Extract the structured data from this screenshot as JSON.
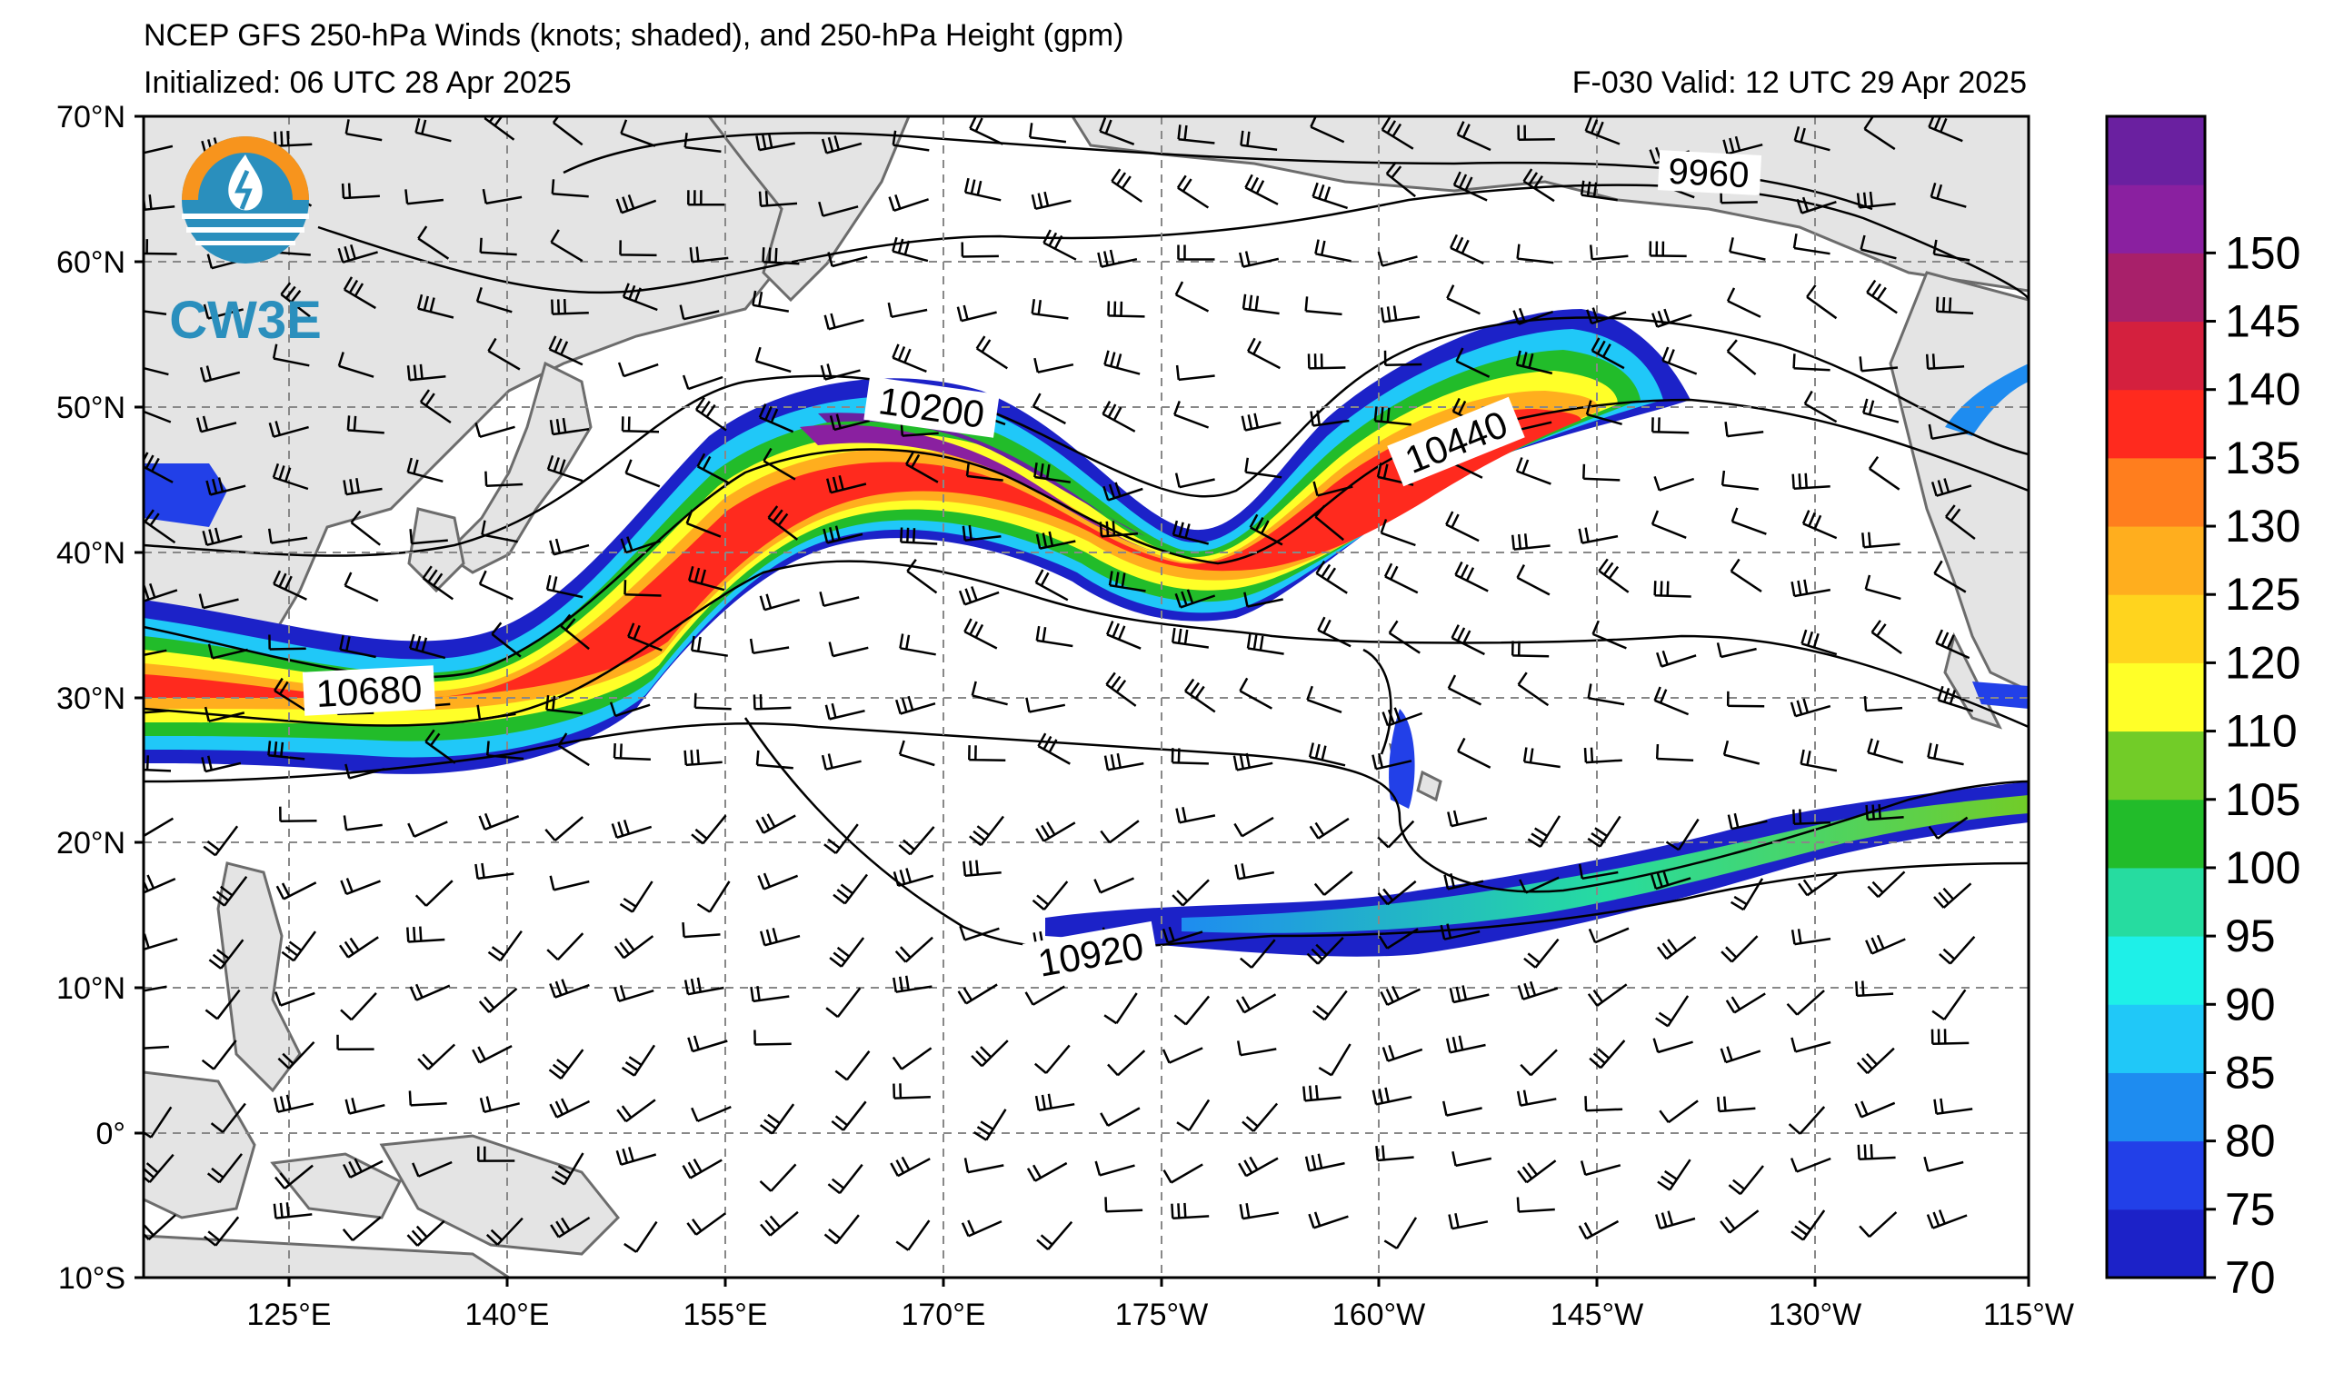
{
  "title": {
    "line1": "NCEP GFS 250-hPa Winds (knots; shaded), and 250-hPa Height (gpm)",
    "init": "Initialized: 06 UTC 28 Apr 2025",
    "valid": "F-030  Valid: 12 UTC 29 Apr 2025"
  },
  "logo": {
    "text": "CW3E",
    "colors": {
      "orange": "#f7941d",
      "teal": "#2a8fbd"
    }
  },
  "map": {
    "lon_range": [
      110,
      -115
    ],
    "lat_range": [
      -10,
      70
    ],
    "lat_ticks": [
      "70°N",
      "60°N",
      "50°N",
      "40°N",
      "30°N",
      "20°N",
      "10°N",
      "0°",
      "10°S"
    ],
    "lon_ticks": [
      "125°E",
      "140°E",
      "155°E",
      "170°E",
      "175°W",
      "160°W",
      "145°W",
      "130°W",
      "115°W"
    ],
    "grid": "dashed",
    "land_color": "#e4e4e4",
    "coast_color": "#666666"
  },
  "contour_labels": [
    {
      "value": "9960"
    },
    {
      "value": "10200"
    },
    {
      "value": "10440"
    },
    {
      "value": "10680"
    },
    {
      "value": "10920"
    }
  ],
  "colorbar": {
    "labels": [
      "70",
      "75",
      "80",
      "85",
      "90",
      "95",
      "100",
      "105",
      "110",
      "120",
      "125",
      "130",
      "135",
      "140",
      "145",
      "150"
    ],
    "colors": [
      "#1c22c8",
      "#2240e8",
      "#1e8cf0",
      "#20c8f8",
      "#1ef0e8",
      "#26dca0",
      "#22bc2a",
      "#72cc28",
      "#ffff28",
      "#ffd41e",
      "#ffae1e",
      "#ff7e1e",
      "#ff2a1e",
      "#d4203e",
      "#a8206a",
      "#8a20a0",
      "#6a20a0"
    ]
  }
}
